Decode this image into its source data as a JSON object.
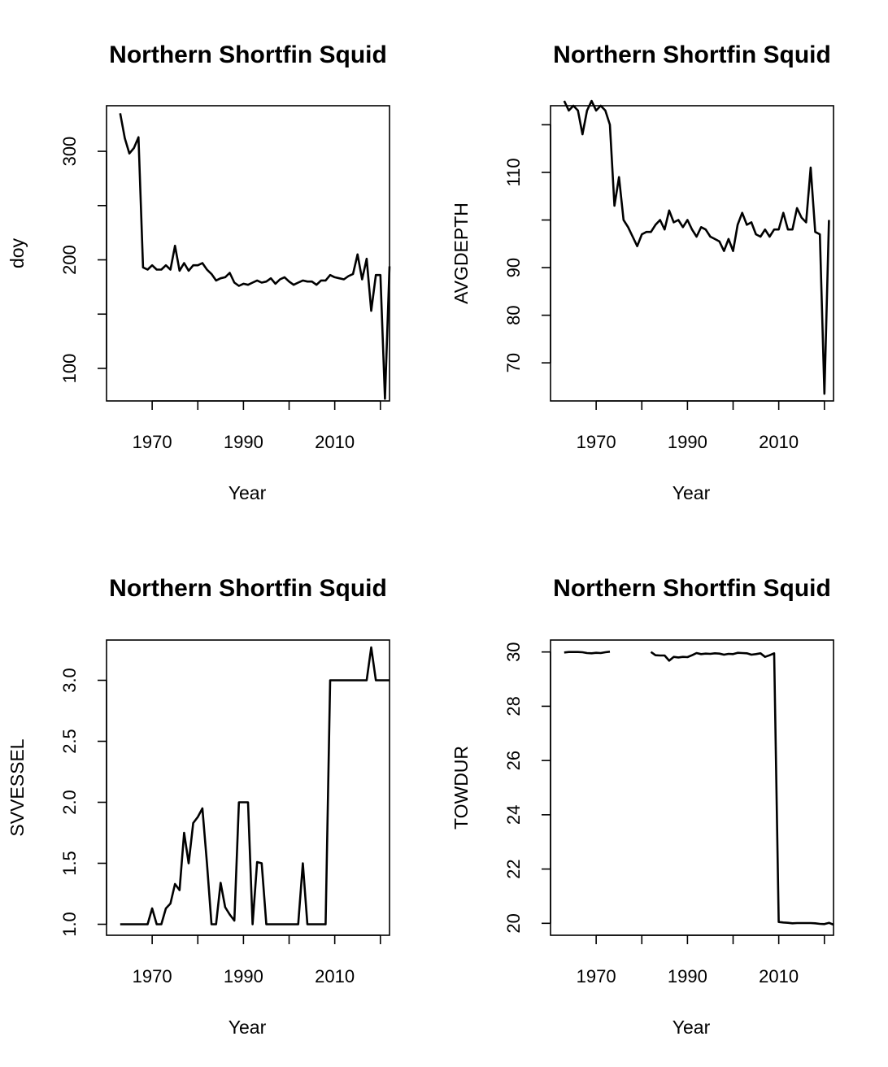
{
  "chart_data": [
    {
      "type": "line",
      "title": "Northern Shortfin Squid",
      "xlabel": "Year",
      "ylabel": "doy",
      "xlim": [
        1960,
        2022
      ],
      "ylim": [
        70,
        342
      ],
      "x_ticks": [
        1970,
        1980,
        1990,
        2000,
        2010,
        2020
      ],
      "x_tick_labels": [
        "1970",
        "",
        "1990",
        "",
        "2010",
        ""
      ],
      "y_ticks": [
        100,
        150,
        200,
        250,
        300
      ],
      "y_tick_labels": [
        "100",
        "",
        "200",
        "",
        "300"
      ],
      "series": [
        {
          "values": [
            [
              1963,
              335
            ],
            [
              1964,
              312
            ],
            [
              1965,
              298
            ],
            [
              1966,
              303
            ],
            [
              1967,
              313
            ],
            [
              1968,
              193
            ],
            [
              1969,
              191
            ],
            [
              1970,
              195
            ],
            [
              1971,
              191
            ],
            [
              1972,
              191
            ],
            [
              1973,
              195
            ],
            [
              1974,
              191
            ],
            [
              1975,
              213
            ],
            [
              1976,
              190
            ],
            [
              1977,
              197
            ],
            [
              1978,
              190
            ],
            [
              1979,
              195
            ],
            [
              1980,
              195
            ],
            [
              1981,
              197
            ],
            [
              1982,
              191
            ],
            [
              1983,
              187
            ],
            [
              1984,
              181
            ],
            [
              1985,
              183
            ],
            [
              1986,
              184
            ],
            [
              1987,
              188
            ],
            [
              1988,
              179
            ],
            [
              1989,
              176
            ],
            [
              1990,
              178
            ],
            [
              1991,
              177
            ],
            [
              1992,
              179
            ],
            [
              1993,
              181
            ],
            [
              1994,
              179
            ],
            [
              1995,
              180
            ],
            [
              1996,
              183
            ],
            [
              1997,
              178
            ],
            [
              1998,
              182
            ],
            [
              1999,
              184
            ],
            [
              2000,
              180
            ],
            [
              2001,
              177
            ],
            [
              2002,
              179
            ],
            [
              2003,
              181
            ],
            [
              2004,
              180
            ],
            [
              2005,
              180
            ],
            [
              2006,
              177
            ],
            [
              2007,
              181
            ],
            [
              2008,
              181
            ],
            [
              2009,
              186
            ],
            [
              2010,
              184
            ],
            [
              2011,
              183
            ],
            [
              2012,
              182
            ],
            [
              2013,
              185
            ],
            [
              2014,
              187
            ],
            [
              2015,
              205
            ],
            [
              2016,
              182
            ],
            [
              2017,
              201
            ],
            [
              2018,
              153
            ],
            [
              2019,
              186
            ],
            [
              2020,
              186
            ],
            [
              2021,
              72
            ],
            [
              2022,
              194
            ]
          ]
        }
      ]
    },
    {
      "type": "line",
      "title": "Northern Shortfin Squid",
      "xlabel": "Year",
      "ylabel": "AVGDEPTH",
      "xlim": [
        1960,
        2022
      ],
      "ylim": [
        62,
        124
      ],
      "x_ticks": [
        1970,
        1980,
        1990,
        2000,
        2010,
        2020
      ],
      "x_tick_labels": [
        "1970",
        "",
        "1990",
        "",
        "2010",
        ""
      ],
      "y_ticks": [
        70,
        80,
        90,
        100,
        110,
        120
      ],
      "y_tick_labels": [
        "70",
        "80",
        "90",
        "",
        "110",
        ""
      ],
      "series": [
        {
          "values": [
            [
              1963,
              125
            ],
            [
              1964,
              123
            ],
            [
              1965,
              124
            ],
            [
              1966,
              123
            ],
            [
              1967,
              118
            ],
            [
              1968,
              123
            ],
            [
              1969,
              125
            ],
            [
              1970,
              123
            ],
            [
              1971,
              124
            ],
            [
              1972,
              123
            ],
            [
              1973,
              120
            ],
            [
              1974,
              103
            ],
            [
              1975,
              109
            ],
            [
              1976,
              100
            ],
            [
              1977,
              98.5
            ],
            [
              1978,
              96.5
            ],
            [
              1979,
              94.5
            ],
            [
              1980,
              97
            ],
            [
              1981,
              97.5
            ],
            [
              1982,
              97.5
            ],
            [
              1983,
              99
            ],
            [
              1984,
              100
            ],
            [
              1985,
              98
            ],
            [
              1986,
              102
            ],
            [
              1987,
              99.5
            ],
            [
              1988,
              100
            ],
            [
              1989,
              98.5
            ],
            [
              1990,
              100
            ],
            [
              1991,
              98
            ],
            [
              1992,
              96.5
            ],
            [
              1993,
              98.5
            ],
            [
              1994,
              98
            ],
            [
              1995,
              96.5
            ],
            [
              1996,
              96
            ],
            [
              1997,
              95.5
            ],
            [
              1998,
              93.5
            ],
            [
              1999,
              96
            ],
            [
              2000,
              93.5
            ],
            [
              2001,
              99
            ],
            [
              2002,
              101.5
            ],
            [
              2003,
              99
            ],
            [
              2004,
              99.5
            ],
            [
              2005,
              97
            ],
            [
              2006,
              96.5
            ],
            [
              2007,
              98
            ],
            [
              2008,
              96.5
            ],
            [
              2009,
              98
            ],
            [
              2010,
              98
            ],
            [
              2011,
              101.5
            ],
            [
              2012,
              98
            ],
            [
              2013,
              98
            ],
            [
              2014,
              102.5
            ],
            [
              2015,
              100.5
            ],
            [
              2016,
              99.5
            ],
            [
              2017,
              111
            ],
            [
              2018,
              97.5
            ],
            [
              2019,
              97
            ],
            [
              2020,
              63.5
            ],
            [
              2021,
              100
            ]
          ]
        }
      ]
    },
    {
      "type": "line",
      "title": "Northern Shortfin Squid",
      "xlabel": "Year",
      "ylabel": "SVVESSEL",
      "xlim": [
        1960,
        2022
      ],
      "ylim": [
        0.91,
        3.33
      ],
      "x_ticks": [
        1970,
        1980,
        1990,
        2000,
        2010,
        2020
      ],
      "x_tick_labels": [
        "1970",
        "",
        "1990",
        "",
        "2010",
        ""
      ],
      "y_ticks": [
        1.0,
        1.5,
        2.0,
        2.5,
        3.0
      ],
      "y_tick_labels": [
        "1.0",
        "1.5",
        "2.0",
        "2.5",
        "3.0"
      ],
      "series": [
        {
          "values": [
            [
              1963,
              1.0
            ],
            [
              1964,
              1.0
            ],
            [
              1965,
              1.0
            ],
            [
              1966,
              1.0
            ],
            [
              1967,
              1.0
            ],
            [
              1968,
              1.0
            ],
            [
              1969,
              1.0
            ],
            [
              1970,
              1.13
            ],
            [
              1971,
              1.0
            ],
            [
              1972,
              1.0
            ],
            [
              1973,
              1.13
            ],
            [
              1974,
              1.17
            ],
            [
              1975,
              1.33
            ],
            [
              1976,
              1.28
            ],
            [
              1977,
              1.75
            ],
            [
              1978,
              1.5
            ],
            [
              1979,
              1.83
            ],
            [
              1980,
              1.88
            ],
            [
              1981,
              1.95
            ],
            [
              1982,
              1.5
            ],
            [
              1983,
              1.0
            ],
            [
              1984,
              1.0
            ],
            [
              1985,
              1.34
            ],
            [
              1986,
              1.14
            ],
            [
              1987,
              1.08
            ],
            [
              1988,
              1.03
            ],
            [
              1989,
              2.0
            ],
            [
              1990,
              2.0
            ],
            [
              1991,
              2.0
            ],
            [
              1992,
              1.0
            ],
            [
              1993,
              1.51
            ],
            [
              1994,
              1.5
            ],
            [
              1995,
              1.0
            ],
            [
              1996,
              1.0
            ],
            [
              1997,
              1.0
            ],
            [
              1998,
              1.0
            ],
            [
              1999,
              1.0
            ],
            [
              2000,
              1.0
            ],
            [
              2001,
              1.0
            ],
            [
              2002,
              1.0
            ],
            [
              2003,
              1.5
            ],
            [
              2004,
              1.0
            ],
            [
              2005,
              1.0
            ],
            [
              2006,
              1.0
            ],
            [
              2007,
              1.0
            ],
            [
              2008,
              1.0
            ],
            [
              2009,
              3.0
            ],
            [
              2010,
              3.0
            ],
            [
              2011,
              3.0
            ],
            [
              2012,
              3.0
            ],
            [
              2013,
              3.0
            ],
            [
              2014,
              3.0
            ],
            [
              2015,
              3.0
            ],
            [
              2016,
              3.0
            ],
            [
              2017,
              3.0
            ],
            [
              2018,
              3.27
            ],
            [
              2019,
              3.0
            ],
            [
              2020,
              3.0
            ],
            [
              2021,
              3.0
            ],
            [
              2022,
              3.0
            ]
          ]
        }
      ]
    },
    {
      "type": "line",
      "title": "Northern Shortfin Squid",
      "xlabel": "Year",
      "ylabel": "TOWDUR",
      "xlim": [
        1960,
        2022
      ],
      "ylim": [
        19.56,
        30.44
      ],
      "x_ticks": [
        1970,
        1980,
        1990,
        2000,
        2010,
        2020
      ],
      "x_tick_labels": [
        "1970",
        "",
        "1990",
        "",
        "2010",
        ""
      ],
      "y_ticks": [
        20,
        22,
        24,
        26,
        28,
        30
      ],
      "y_tick_labels": [
        "20",
        "22",
        "24",
        "26",
        "28",
        "30"
      ],
      "series": [
        {
          "values": [
            [
              1963,
              29.98
            ],
            [
              1964,
              30.0
            ],
            [
              1965,
              30.0
            ],
            [
              1966,
              30.0
            ],
            [
              1967,
              29.99
            ],
            [
              1968,
              29.96
            ],
            [
              1969,
              29.95
            ],
            [
              1970,
              29.97
            ],
            [
              1971,
              29.96
            ],
            [
              1972,
              29.99
            ],
            [
              1973,
              30.01
            ]
          ]
        },
        {
          "values": [
            [
              1982,
              30.0
            ],
            [
              1983,
              29.88
            ],
            [
              1984,
              29.87
            ],
            [
              1985,
              29.87
            ],
            [
              1986,
              29.68
            ],
            [
              1987,
              29.82
            ],
            [
              1988,
              29.8
            ],
            [
              1989,
              29.82
            ],
            [
              1990,
              29.81
            ],
            [
              1991,
              29.88
            ],
            [
              1992,
              29.96
            ],
            [
              1993,
              29.92
            ],
            [
              1994,
              29.94
            ],
            [
              1995,
              29.93
            ],
            [
              1996,
              29.95
            ],
            [
              1997,
              29.94
            ],
            [
              1998,
              29.9
            ],
            [
              1999,
              29.93
            ],
            [
              2000,
              29.92
            ],
            [
              2001,
              29.97
            ],
            [
              2002,
              29.96
            ],
            [
              2003,
              29.95
            ],
            [
              2004,
              29.9
            ],
            [
              2005,
              29.92
            ],
            [
              2006,
              29.95
            ],
            [
              2007,
              29.82
            ],
            [
              2008,
              29.88
            ],
            [
              2009,
              29.95
            ],
            [
              2010,
              20.05
            ],
            [
              2011,
              20.03
            ],
            [
              2012,
              20.02
            ],
            [
              2013,
              20.0
            ],
            [
              2014,
              20.01
            ],
            [
              2015,
              20.01
            ],
            [
              2016,
              20.01
            ],
            [
              2017,
              20.01
            ],
            [
              2018,
              20.0
            ],
            [
              2019,
              19.98
            ],
            [
              2020,
              19.97
            ],
            [
              2021,
              20.02
            ],
            [
              2022,
              19.95
            ]
          ]
        }
      ]
    }
  ]
}
